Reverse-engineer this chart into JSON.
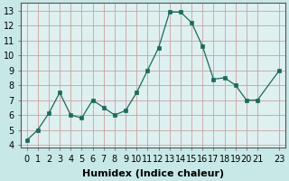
{
  "x": [
    0,
    1,
    2,
    3,
    4,
    5,
    6,
    7,
    8,
    9,
    10,
    11,
    12,
    13,
    14,
    15,
    16,
    17,
    18,
    19,
    20,
    21,
    23
  ],
  "y": [
    4.3,
    5.0,
    6.1,
    7.5,
    6.0,
    5.8,
    7.0,
    6.5,
    6.0,
    6.3,
    7.5,
    9.0,
    10.5,
    12.9,
    12.9,
    12.2,
    10.6,
    8.4,
    8.5,
    8.0,
    7.0,
    7.0,
    9.0
  ],
  "xlabel": "Humidex (Indice chaleur)",
  "xticks": [
    0,
    1,
    2,
    3,
    4,
    5,
    6,
    7,
    8,
    9,
    10,
    11,
    12,
    13,
    14,
    15,
    16,
    17,
    18,
    19,
    20,
    21,
    23
  ],
  "xtick_labels": [
    "0",
    "1",
    "2",
    "3",
    "4",
    "5",
    "6",
    "7",
    "8",
    "9",
    "10",
    "11",
    "12",
    "13",
    "14",
    "15",
    "16",
    "17",
    "18",
    "19",
    "20",
    "21",
    "23"
  ],
  "yticks": [
    4,
    5,
    6,
    7,
    8,
    9,
    10,
    11,
    12,
    13
  ],
  "ylim": [
    3.8,
    13.5
  ],
  "xlim": [
    -0.5,
    23.5
  ],
  "line_color": "#1a6b5a",
  "marker_color": "#1a6b5a",
  "fig_bg_color": "#c8e8e8",
  "plot_bg_color": "#dff0f0",
  "grid_color": "#c8a0a0",
  "xlabel_fontsize": 8,
  "tick_fontsize": 7,
  "xlabel_fontweight": "bold"
}
